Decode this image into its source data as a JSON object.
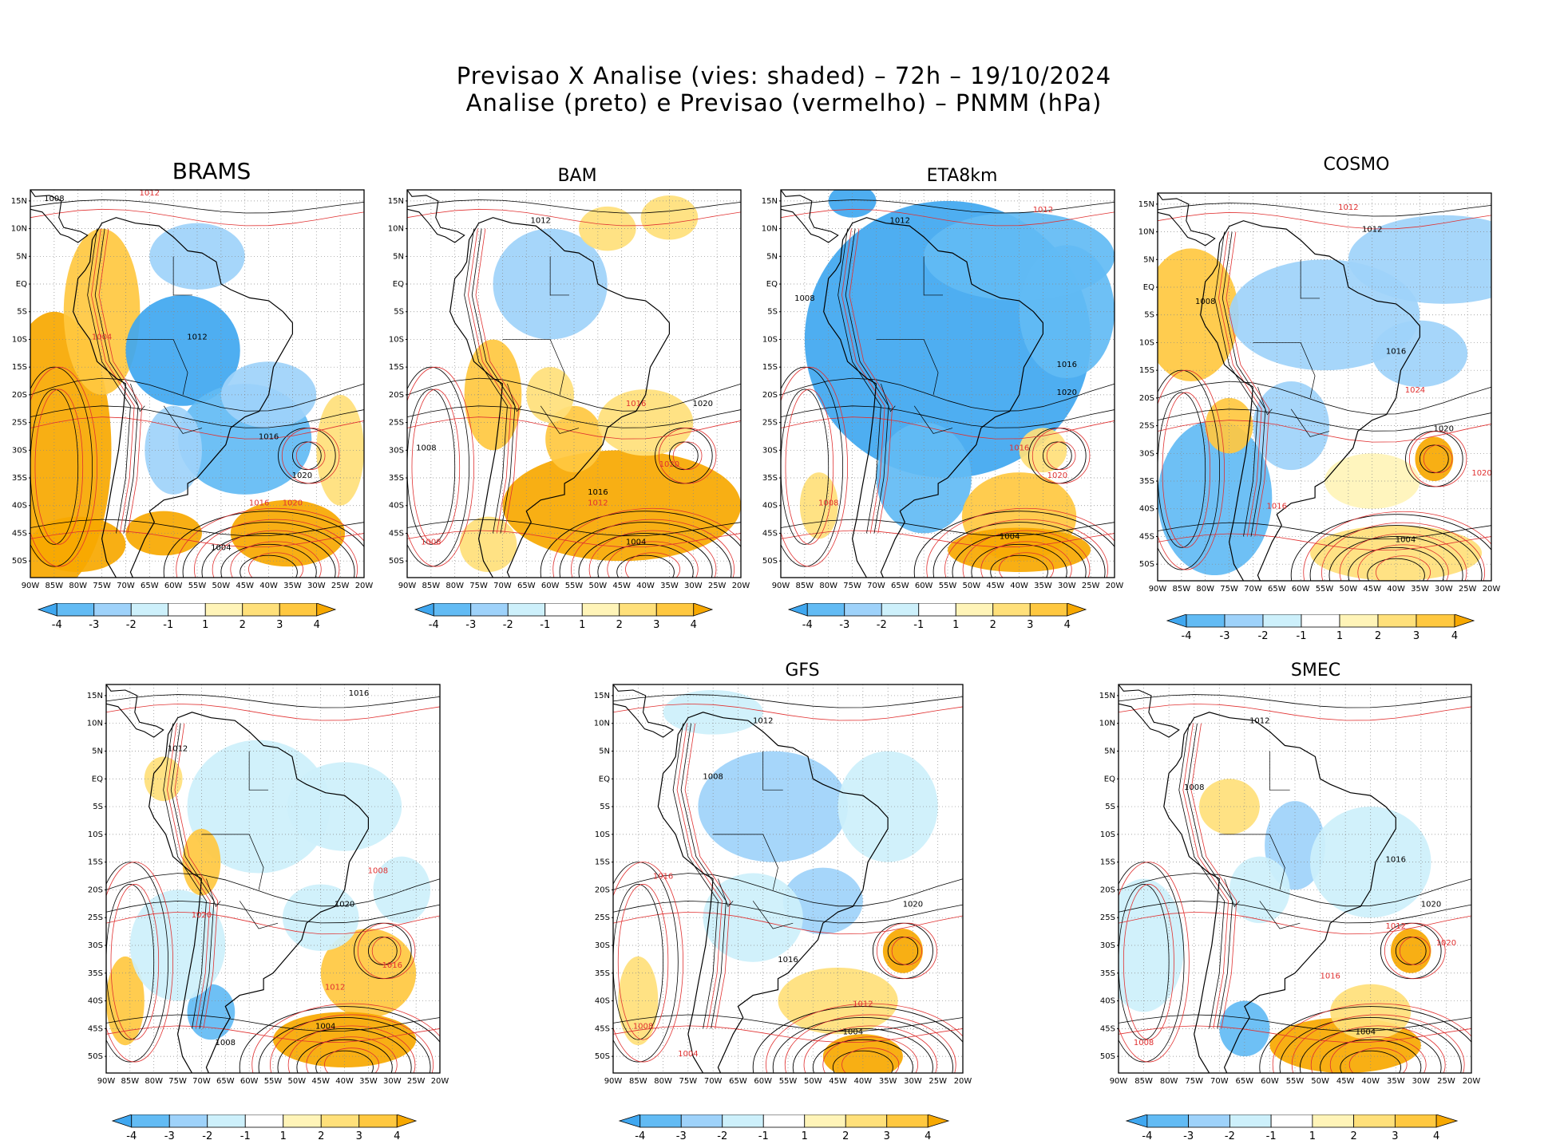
{
  "figure": {
    "title_line1": "Previsao X Analise (vies: shaded) – 72h – 19/10/2024",
    "title_line2": "Analise (preto) e Previsao (vermelho) – PNMM (hPa)"
  },
  "axes": {
    "lon_labels": [
      "90W",
      "85W",
      "80W",
      "75W",
      "70W",
      "65W",
      "60W",
      "55W",
      "50W",
      "45W",
      "40W",
      "35W",
      "30W",
      "25W",
      "20W"
    ],
    "lat_labels": [
      "15N",
      "10N",
      "5N",
      "EQ",
      "5S",
      "10S",
      "15S",
      "20S",
      "25S",
      "30S",
      "35S",
      "40S",
      "45S",
      "50S"
    ]
  },
  "colorbar": {
    "ticks": [
      "-4",
      "-3",
      "-2",
      "-1",
      "1",
      "2",
      "3",
      "4"
    ],
    "colors": [
      "#3fa7f0",
      "#62bbf4",
      "#9ed2fa",
      "#cdf0fb",
      "#ffffff",
      "#fff4b8",
      "#ffe07a",
      "#ffc840",
      "#f7a800"
    ]
  },
  "colors": {
    "analysis_contour": "#000000",
    "forecast_contour": "#e03030"
  },
  "panels": [
    {
      "name": "BRAMS",
      "labels": [
        {
          "t": "1008"
        },
        {
          "t": "1012"
        },
        {
          "t": "1016"
        },
        {
          "t": "1020"
        },
        {
          "t": "1004"
        },
        {
          "t": "1012",
          "f": true
        },
        {
          "t": "1016",
          "f": true
        },
        {
          "t": "1020",
          "f": true
        },
        {
          "t": "1004",
          "f": true
        }
      ]
    },
    {
      "name": "BAM",
      "labels": [
        {
          "t": "1012"
        },
        {
          "t": "1016"
        },
        {
          "t": "1020"
        },
        {
          "t": "1008"
        },
        {
          "t": "1004"
        },
        {
          "t": "1016",
          "f": true
        },
        {
          "t": "1012",
          "f": true
        },
        {
          "t": "1020",
          "f": true
        },
        {
          "t": "1008",
          "f": true
        }
      ]
    },
    {
      "name": "ETA8km",
      "labels": [
        {
          "t": "1012"
        },
        {
          "t": "1016"
        },
        {
          "t": "1008"
        },
        {
          "t": "1020"
        },
        {
          "t": "1004"
        },
        {
          "t": "1012",
          "f": true
        },
        {
          "t": "1016",
          "f": true
        },
        {
          "t": "1020",
          "f": true
        },
        {
          "t": "1008",
          "f": true
        }
      ]
    },
    {
      "name": "COSMO",
      "labels": [
        {
          "t": "1012"
        },
        {
          "t": "1008"
        },
        {
          "t": "1016"
        },
        {
          "t": "1020"
        },
        {
          "t": "1004"
        },
        {
          "t": "1012",
          "f": true
        },
        {
          "t": "1016",
          "f": true
        },
        {
          "t": "1020",
          "f": true
        },
        {
          "t": "1024",
          "f": true
        }
      ]
    },
    {
      "name": "",
      "labels": [
        {
          "t": "1016"
        },
        {
          "t": "1012"
        },
        {
          "t": "1008"
        },
        {
          "t": "1020"
        },
        {
          "t": "1004"
        },
        {
          "t": "1012",
          "f": true
        },
        {
          "t": "1016",
          "f": true
        },
        {
          "t": "1020",
          "f": true
        },
        {
          "t": "1008",
          "f": true
        }
      ]
    },
    {
      "name": "GFS",
      "labels": [
        {
          "t": "1012"
        },
        {
          "t": "1008"
        },
        {
          "t": "1016"
        },
        {
          "t": "1020"
        },
        {
          "t": "1004"
        },
        {
          "t": "1012",
          "f": true
        },
        {
          "t": "1016",
          "f": true
        },
        {
          "t": "1008",
          "f": true
        },
        {
          "t": "1004",
          "f": true
        }
      ]
    },
    {
      "name": "SMEC",
      "labels": [
        {
          "t": "1012"
        },
        {
          "t": "1008"
        },
        {
          "t": "1016"
        },
        {
          "t": "1020"
        },
        {
          "t": "1004"
        },
        {
          "t": "1012",
          "f": true
        },
        {
          "t": "1016",
          "f": true
        },
        {
          "t": "1020",
          "f": true
        },
        {
          "t": "1008",
          "f": true
        }
      ]
    }
  ]
}
